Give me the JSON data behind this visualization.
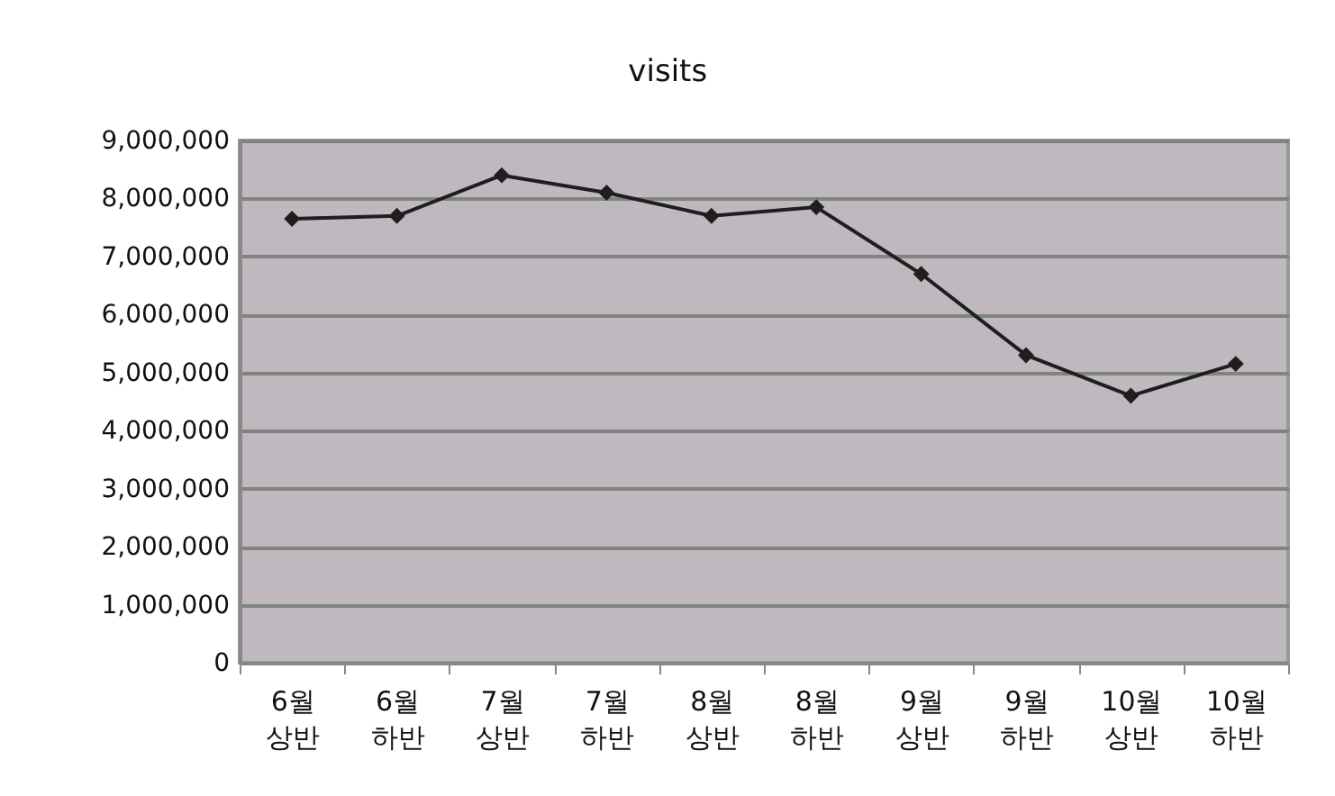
{
  "chart_data": {
    "type": "line",
    "title": "visits",
    "categories": [
      "6월\n상반",
      "6월\n하반",
      "7월\n상반",
      "7월\n하반",
      "8월\n상반",
      "8월\n하반",
      "9월\n상반",
      "9월\n하반",
      "10월\n상반",
      "10월\n하반"
    ],
    "series": [
      {
        "color": "#1e1e1e",
        "values": [
          7650000,
          7700000,
          8400000,
          8100000,
          7700000,
          7850000,
          6700000,
          5300000,
          4600000,
          5150000
        ]
      }
    ],
    "ylim": [
      0,
      9000000
    ],
    "yticks": [
      0,
      {
        "value": 1000000,
        "label": "1,000,000"
      },
      {
        "value": 2000000,
        "label": "2,000,000"
      },
      {
        "value": 3000000,
        "label": "3,000,000"
      },
      {
        "value": 4000000,
        "label": "4,000,000"
      },
      {
        "value": 5000000,
        "label": "5,000,000"
      },
      {
        "value": 6000000,
        "label": "6,000,000"
      },
      {
        "value": 7000000,
        "label": "7,000,000"
      },
      {
        "value": 8000000,
        "label": "8,000,000"
      },
      {
        "value": 9000000,
        "label": "9,000,000"
      }
    ],
    "grid": "y",
    "marker": "diamond",
    "line_style": "solid"
  }
}
